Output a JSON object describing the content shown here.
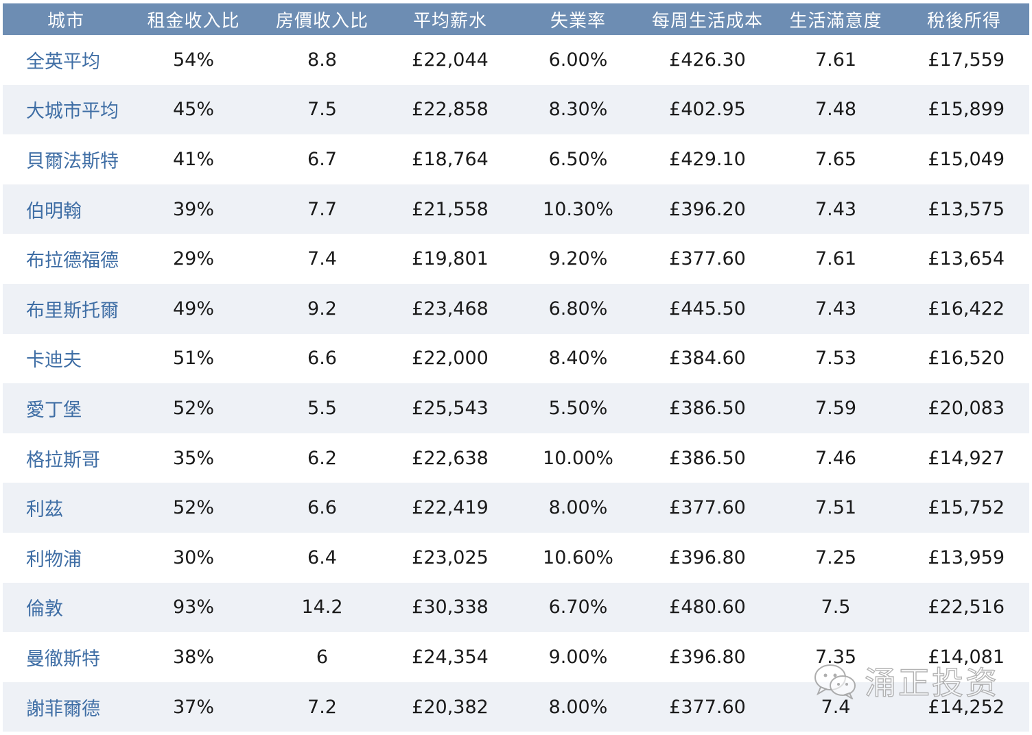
{
  "table": {
    "headers": [
      "城市",
      "租金收入比",
      "房價收入比",
      "平均薪水",
      "失業率",
      "每周生活成本",
      "生活滿意度",
      "稅後所得"
    ],
    "rows": [
      [
        "全英平均",
        "54%",
        "8.8",
        "£22,044",
        "6.00%",
        "£426.30",
        "7.61",
        "£17,559"
      ],
      [
        "大城市平均",
        "45%",
        "7.5",
        "£22,858",
        "8.30%",
        "£402.95",
        "7.48",
        "£15,899"
      ],
      [
        "貝爾法斯特",
        "41%",
        "6.7",
        "£18,764",
        "6.50%",
        "£429.10",
        "7.65",
        "£15,049"
      ],
      [
        "伯明翰",
        "39%",
        "7.7",
        "£21,558",
        "10.30%",
        "£396.20",
        "7.43",
        "£13,575"
      ],
      [
        "布拉德福德",
        "29%",
        "7.4",
        "£19,801",
        "9.20%",
        "£377.60",
        "7.61",
        "£13,654"
      ],
      [
        "布里斯托爾",
        "49%",
        "9.2",
        "£23,468",
        "6.80%",
        "£445.50",
        "7.43",
        "£16,422"
      ],
      [
        "卡迪夫",
        "51%",
        "6.6",
        "£22,000",
        "8.40%",
        "£384.60",
        "7.53",
        "£16,520"
      ],
      [
        "愛丁堡",
        "52%",
        "5.5",
        "£25,543",
        "5.50%",
        "£386.50",
        "7.59",
        "£20,083"
      ],
      [
        "格拉斯哥",
        "35%",
        "6.2",
        "£22,638",
        "10.00%",
        "£386.50",
        "7.46",
        "£14,927"
      ],
      [
        "利茲",
        "52%",
        "6.6",
        "£22,419",
        "8.00%",
        "£377.60",
        "7.51",
        "£15,752"
      ],
      [
        "利物浦",
        "30%",
        "6.4",
        "£23,025",
        "10.60%",
        "£396.80",
        "7.25",
        "£13,959"
      ],
      [
        "倫敦",
        "93%",
        "14.2",
        "£30,338",
        "6.70%",
        "£480.60",
        "7.5",
        "£22,516"
      ],
      [
        "曼徹斯特",
        "38%",
        "6",
        "£24,354",
        "9.00%",
        "£396.80",
        "7.35",
        "£14,081"
      ],
      [
        "謝菲爾德",
        "37%",
        "7.2",
        "£20,382",
        "8.00%",
        "£377.60",
        "7.4",
        "£14,252"
      ]
    ]
  },
  "watermark": {
    "text": "涌正投资",
    "icon": "wechat-icon"
  },
  "colors": {
    "header_bg": "#6d8db3",
    "header_text": "#ffffff",
    "city_text": "#3f6ea5",
    "stripe": "#eef1f6"
  }
}
